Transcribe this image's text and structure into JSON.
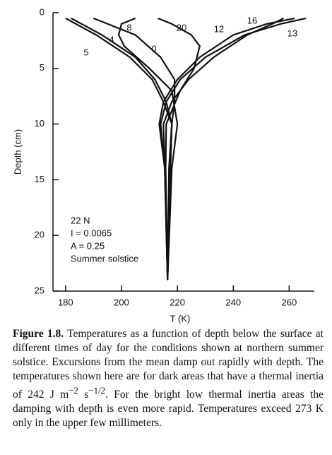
{
  "chart_data": {
    "type": "line",
    "x_label": "T (K)",
    "y_label": "Depth (cm)",
    "xlim": [
      175.5,
      269
    ],
    "ylim": [
      0,
      25
    ],
    "xticks": [
      180,
      200,
      220,
      240,
      260
    ],
    "yticks": [
      0,
      5,
      10,
      15,
      20,
      25
    ],
    "y_inverted": true,
    "color": "#111111",
    "annotations": [
      "22 N",
      "I = 0.0065",
      "A = 0.25",
      "Summer solstice"
    ],
    "series": [
      {
        "name": "0",
        "x": [
          190,
          205,
          214,
          219,
          219,
          218,
          217,
          216.8,
          216.5
        ],
        "y": [
          0.5,
          2,
          4,
          6,
          8,
          10,
          14,
          18,
          24
        ]
      },
      {
        "name": "4",
        "x": [
          182,
          193,
          205,
          212,
          216,
          218,
          217.5,
          217,
          216.5
        ],
        "y": [
          0.5,
          2,
          4,
          6,
          8,
          10,
          14,
          18,
          24
        ]
      },
      {
        "name": "5",
        "x": [
          180,
          191,
          203,
          211,
          215,
          218,
          217.5,
          217,
          216.5
        ],
        "y": [
          0.5,
          2,
          4,
          6,
          8,
          10,
          14,
          18,
          24
        ]
      },
      {
        "name": "8",
        "x": [
          205,
          200,
          199,
          201,
          210,
          218,
          220,
          218,
          216.5
        ],
        "y": [
          0.5,
          1,
          2,
          3,
          5,
          7,
          10,
          14,
          24
        ]
      },
      {
        "name": "12",
        "x": [
          262,
          252,
          240,
          228,
          220,
          215,
          213.5,
          215.5,
          216.5
        ],
        "y": [
          0.5,
          1,
          2,
          4,
          6,
          8,
          10,
          14,
          24
        ]
      },
      {
        "name": "13",
        "x": [
          266,
          257,
          244,
          230,
          221,
          216,
          214,
          215.5,
          216.5
        ],
        "y": [
          0.5,
          1,
          2,
          4,
          6,
          8,
          10,
          14,
          24
        ]
      },
      {
        "name": "16",
        "x": [
          258,
          254,
          245,
          233,
          224,
          218,
          215,
          215.5,
          216.5
        ],
        "y": [
          0.5,
          1,
          2,
          4,
          6,
          8,
          10,
          14,
          24
        ]
      },
      {
        "name": "20",
        "x": [
          213,
          218,
          225,
          228,
          226,
          221,
          216,
          215.8,
          216.5
        ],
        "y": [
          0.5,
          1,
          2,
          3,
          5,
          7,
          10,
          14,
          24
        ]
      }
    ]
  },
  "caption": {
    "label": "Figure 1.8.",
    "parts": [
      " Temperatures as a function of depth below the surface at different times of day for the conditions shown at northern summer solstice. Excursions from the mean damp out rapidly with depth. The temperatures shown here are for dark areas that have a thermal inertia of 242 J m",
      "−2",
      " s",
      "−1/2",
      ". For the bright low thermal inertia areas the damping with depth is even more rapid. Temperatures exceed 273 K only in the upper few millimeters."
    ]
  }
}
